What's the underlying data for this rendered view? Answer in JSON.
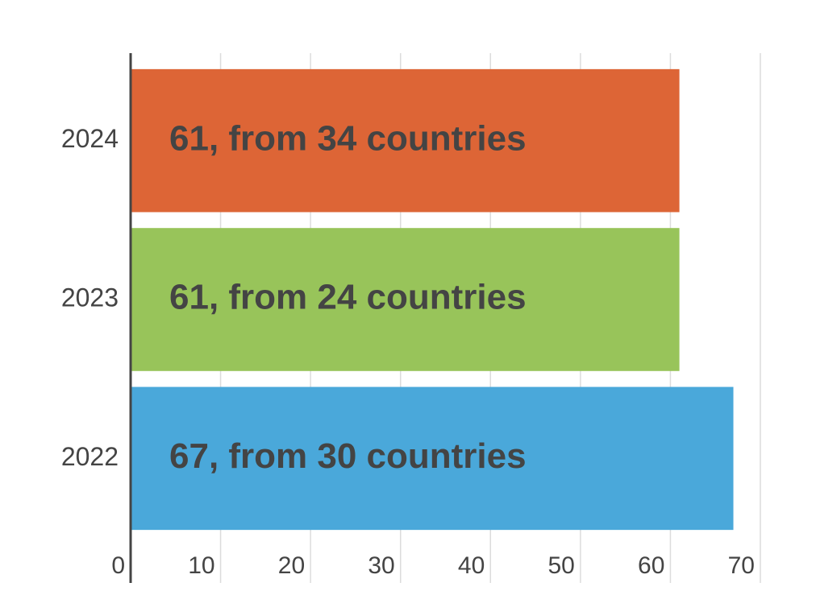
{
  "chart_data": {
    "type": "bar",
    "orientation": "horizontal",
    "categories": [
      "2024",
      "2023",
      "2022"
    ],
    "values": [
      61,
      61,
      67
    ],
    "value_labels": [
      "61, from 34 countries",
      "61, from 24 countries",
      "67, from 30 countries"
    ],
    "colors": [
      "#dd6536",
      "#98c45a",
      "#4aa8da"
    ],
    "xlim": [
      0,
      70
    ],
    "xticks": [
      0,
      10,
      20,
      30,
      40,
      50,
      60,
      70
    ],
    "grid": true
  }
}
